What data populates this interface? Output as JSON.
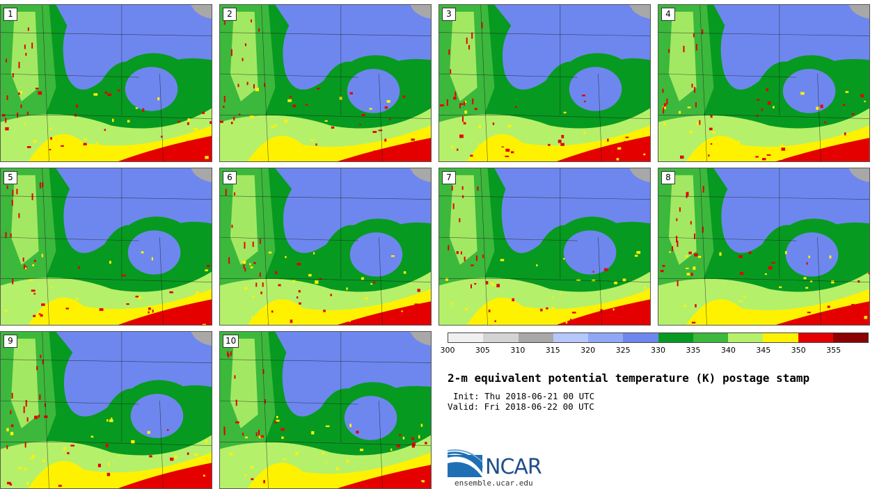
{
  "panels": [
    {
      "label": "1"
    },
    {
      "label": "2"
    },
    {
      "label": "3"
    },
    {
      "label": "4"
    },
    {
      "label": "5"
    },
    {
      "label": "6"
    },
    {
      "label": "7"
    },
    {
      "label": "8"
    },
    {
      "label": "9"
    },
    {
      "label": "10"
    }
  ],
  "colorbar": {
    "colors": [
      "#f0f0f0",
      "#d4d4d4",
      "#a8a8a8",
      "#b6c8fb",
      "#8fa8f6",
      "#6e87ee",
      "#079a20",
      "#3cb83c",
      "#b5f06a",
      "#fff200",
      "#e50000",
      "#8b0000"
    ],
    "tick_labels": [
      "300",
      "305",
      "310",
      "315",
      "320",
      "325",
      "330",
      "335",
      "340",
      "345",
      "350",
      "355"
    ]
  },
  "title": "2-m equivalent potential temperature (K) postage stamp",
  "init": "Init: Thu 2018-06-21 00 UTC",
  "valid": "Valid: Fri 2018-06-22 00 UTC",
  "logo": {
    "text": "NCAR",
    "url": "ensemble.ucar.edu",
    "color": "#1f4e8c"
  }
}
